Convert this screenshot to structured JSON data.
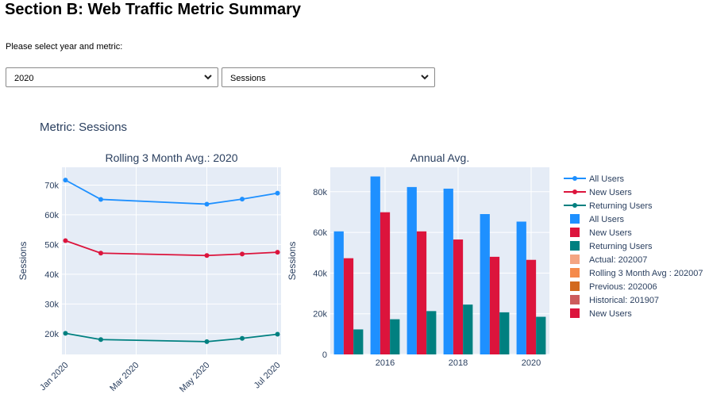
{
  "page": {
    "title": "Section B: Web Traffic Metric Summary",
    "prompt": "Please select year and metric:",
    "year_select": {
      "value": "2020"
    },
    "metric_select": {
      "value": "Sessions"
    },
    "metric_heading": "Metric: Sessions"
  },
  "colors": {
    "plot_bg": "#e5ecf6",
    "text": "#2a3f5f",
    "all_users": "#1e90ff",
    "new_users": "#dc143c",
    "returning_users": "#008080",
    "actual": "#f4a582",
    "rolling": "#f58a4b",
    "previous": "#d2691e",
    "historical": "#cd5c5c"
  },
  "chart_data": [
    {
      "type": "line",
      "title": "Rolling 3 Month Avg.: 2020",
      "xlabel": "",
      "ylabel": "Sessions",
      "x": [
        "2020-01",
        "2020-02",
        "2020-05",
        "2020-06",
        "2020-07"
      ],
      "xticks": [
        "Jan 2020",
        "Mar 2020",
        "May 2020",
        "Jul 2020"
      ],
      "yticks": [
        "20k",
        "30k",
        "40k",
        "50k",
        "60k",
        "70k"
      ],
      "ylim": [
        13000,
        76000
      ],
      "grid": true,
      "series": [
        {
          "name": "All Users",
          "values": [
            71700,
            65200,
            63600,
            65300,
            67300
          ]
        },
        {
          "name": "New Users",
          "values": [
            51300,
            47100,
            46300,
            46800,
            47400
          ]
        },
        {
          "name": "Returning Users",
          "values": [
            20100,
            18000,
            17300,
            18400,
            19800
          ]
        }
      ]
    },
    {
      "type": "bar",
      "title": "Annual Avg.",
      "xlabel": "",
      "ylabel": "Sessions",
      "categories": [
        "2015",
        "2016",
        "2017",
        "2018",
        "2019",
        "2020"
      ],
      "xticks": [
        "2016",
        "2018",
        "2020"
      ],
      "yticks": [
        "0",
        "20k",
        "40k",
        "60k",
        "80k"
      ],
      "ylim": [
        0,
        92000
      ],
      "grid": true,
      "series": [
        {
          "name": "All Users",
          "values": [
            60500,
            87500,
            82300,
            81500,
            69000,
            65300
          ]
        },
        {
          "name": "New Users",
          "values": [
            47300,
            69900,
            60500,
            56500,
            48000,
            46500
          ]
        },
        {
          "name": "Returning Users",
          "values": [
            12300,
            17300,
            21300,
            24500,
            20700,
            18500
          ]
        }
      ]
    }
  ],
  "legend": [
    {
      "name": "All Users",
      "kind": "line",
      "color": "#1e90ff"
    },
    {
      "name": "New Users",
      "kind": "line",
      "color": "#dc143c"
    },
    {
      "name": "Returning Users",
      "kind": "line",
      "color": "#008080"
    },
    {
      "name": "All Users",
      "kind": "box",
      "color": "#1e90ff"
    },
    {
      "name": "New Users",
      "kind": "box",
      "color": "#dc143c"
    },
    {
      "name": "Returning Users",
      "kind": "box",
      "color": "#008080"
    },
    {
      "name": "Actual: 202007",
      "kind": "box",
      "color": "#f4a582"
    },
    {
      "name": "Rolling 3 Month Avg : 202007",
      "kind": "box",
      "color": "#f58a4b"
    },
    {
      "name": "Previous: 202006",
      "kind": "box",
      "color": "#d2691e"
    },
    {
      "name": "Historical: 201907",
      "kind": "box",
      "color": "#cd5c5c"
    },
    {
      "name": "New Users",
      "kind": "box",
      "color": "#dc143c"
    }
  ]
}
